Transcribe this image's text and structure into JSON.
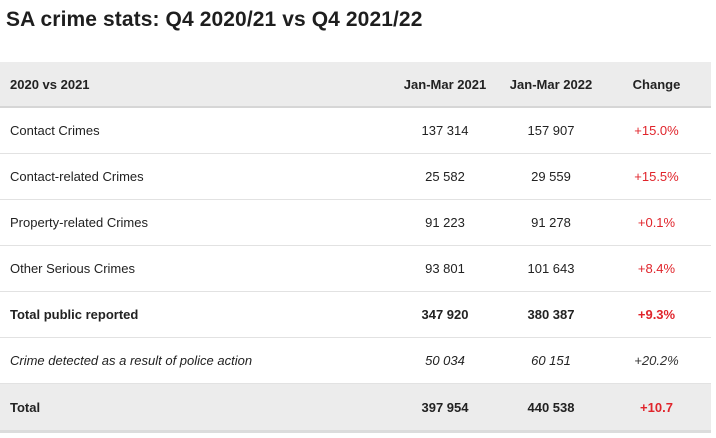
{
  "title": "SA crime stats: Q4 2020/21 vs Q4 2021/22",
  "colors": {
    "negative_change": "#e0242b",
    "header_bg": "#ececec"
  },
  "table": {
    "header": {
      "label": "2020 vs 2021",
      "col_a": "Jan-Mar 2021",
      "col_b": "Jan-Mar 2022",
      "change": "Change"
    },
    "rows": [
      {
        "label": "Contact Crimes",
        "a": "137 314",
        "b": "157 907",
        "change": "+15.0%"
      },
      {
        "label": "Contact-related Crimes",
        "a": "25 582",
        "b": "29 559",
        "change": "+15.5%"
      },
      {
        "label": "Property-related Crimes",
        "a": "91 223",
        "b": "91 278",
        "change": "+0.1%"
      },
      {
        "label": "Other Serious Crimes",
        "a": "93 801",
        "b": "101 643",
        "change": "+8.4%"
      },
      {
        "label": "Total public reported",
        "a": "347 920",
        "b": "380 387",
        "change": "+9.3%"
      },
      {
        "label": "Crime detected as a result of police action",
        "a": "50 034",
        "b": "60 151",
        "change": "+20.2%"
      },
      {
        "label": "Total",
        "a": "397 954",
        "b": "440 538",
        "change": "+10.7"
      }
    ]
  }
}
